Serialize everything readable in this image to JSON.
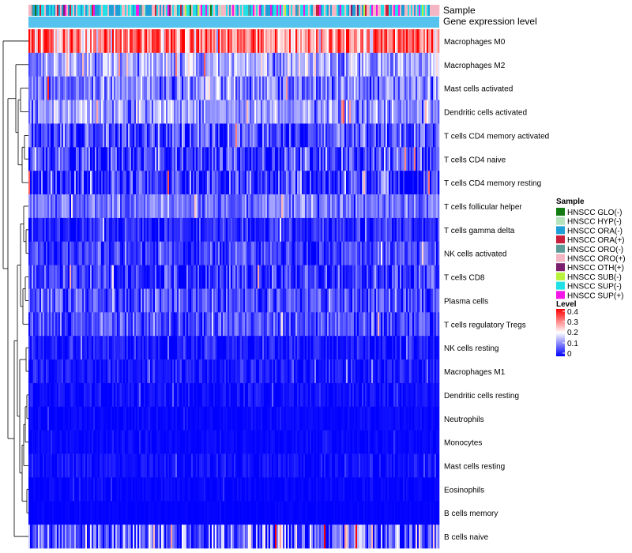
{
  "chart_data": {
    "type": "heatmap",
    "annotation_labels": {
      "top": "Sample",
      "bottom": "Gene expression level"
    },
    "rows": [
      {
        "name": "Macrophages M0",
        "mean": 0.3,
        "spread": 0.1
      },
      {
        "name": "Macrophages M2",
        "mean": 0.13,
        "spread": 0.07
      },
      {
        "name": "Mast cells activated",
        "mean": 0.1,
        "spread": 0.07
      },
      {
        "name": "Dendritic cells activated",
        "mean": 0.12,
        "spread": 0.06
      },
      {
        "name": "T cells CD4 memory activated",
        "mean": 0.06,
        "spread": 0.07
      },
      {
        "name": "T cells CD4 naive",
        "mean": 0.05,
        "spread": 0.07
      },
      {
        "name": "T cells CD4 memory resting",
        "mean": 0.04,
        "spread": 0.08
      },
      {
        "name": "T cells follicular helper",
        "mean": 0.09,
        "spread": 0.05
      },
      {
        "name": "T cells gamma delta",
        "mean": 0.03,
        "spread": 0.04
      },
      {
        "name": "NK cells activated",
        "mean": 0.05,
        "spread": 0.05
      },
      {
        "name": "T cells CD8",
        "mean": 0.04,
        "spread": 0.06
      },
      {
        "name": "Plasma cells",
        "mean": 0.06,
        "spread": 0.06
      },
      {
        "name": "T cells regulatory  Tregs",
        "mean": 0.06,
        "spread": 0.05
      },
      {
        "name": "NK cells resting",
        "mean": 0.02,
        "spread": 0.03
      },
      {
        "name": "Macrophages M1",
        "mean": 0.02,
        "spread": 0.03
      },
      {
        "name": "Dendritic cells resting",
        "mean": 0.01,
        "spread": 0.02
      },
      {
        "name": "Neutrophils",
        "mean": 0.005,
        "spread": 0.01
      },
      {
        "name": "Monocytes",
        "mean": 0.005,
        "spread": 0.01
      },
      {
        "name": "Mast cells resting",
        "mean": 0.01,
        "spread": 0.02
      },
      {
        "name": "Eosinophils",
        "mean": 0.003,
        "spread": 0.01
      },
      {
        "name": "B cells memory",
        "mean": 0.002,
        "spread": 0.005
      },
      {
        "name": "B cells naive",
        "mean": 0.08,
        "spread": 0.12
      }
    ],
    "n_samples": 260,
    "sample_groups": [
      {
        "name": "HNSCC GLO(-)",
        "color": "#137B13"
      },
      {
        "name": "HNSCC HYP(-)",
        "color": "#B4E3BE"
      },
      {
        "name": "HNSCC ORA(-)",
        "color": "#1E9FD8"
      },
      {
        "name": "HNSCC ORA(+)",
        "color": "#C91F3C"
      },
      {
        "name": "HNSCC ORO(-)",
        "color": "#5A9A97"
      },
      {
        "name": "HNSCC ORO(+)",
        "color": "#F4B6C2"
      },
      {
        "name": "HNSCC OTH(+)",
        "color": "#7A1F6E"
      },
      {
        "name": "HNSCC SUB(-)",
        "color": "#B9F23C"
      },
      {
        "name": "HNSCC SUP(-)",
        "color": "#22E1E6"
      },
      {
        "name": "HNSCC SUP(+)",
        "color": "#F316E8"
      }
    ],
    "sample_group_weights": [
      0.01,
      0.02,
      0.18,
      0.03,
      0.02,
      0.33,
      0.02,
      0.02,
      0.28,
      0.09
    ],
    "expression_level_color": "#56C3EE",
    "level_legend": {
      "title": "Level",
      "min": 0,
      "max": 0.4,
      "ticks": [
        "0.4",
        "0.3",
        "0.2",
        "0.1",
        "0"
      ],
      "colors": [
        "#0000FF",
        "#FFFFFF",
        "#FF0000"
      ]
    },
    "sample_legend_title": "Sample"
  }
}
